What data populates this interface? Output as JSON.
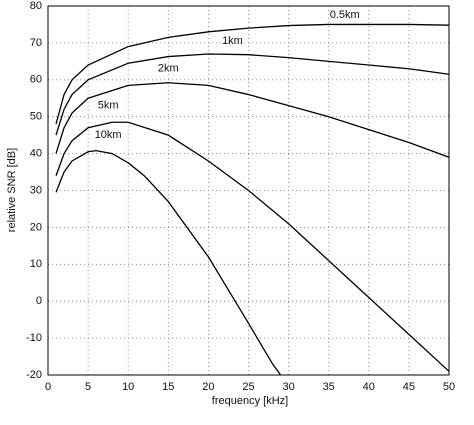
{
  "chart_data": {
    "type": "line",
    "xlabel": "frequency [kHz]",
    "ylabel": "relative SNR [dB]",
    "xlim": [
      0,
      50
    ],
    "ylim": [
      -20,
      80
    ],
    "xticks": [
      0,
      5,
      10,
      15,
      20,
      25,
      30,
      35,
      40,
      45,
      50
    ],
    "yticks": [
      -20,
      -10,
      0,
      10,
      20,
      30,
      40,
      50,
      60,
      70,
      80
    ],
    "grid": true,
    "series": [
      {
        "name": "0.5km",
        "color": "#000000",
        "x": [
          1,
          2,
          3,
          5,
          10,
          15,
          20,
          25,
          30,
          35,
          40,
          45,
          50
        ],
        "values": [
          48,
          56,
          60,
          64,
          69,
          71.5,
          73,
          74,
          74.7,
          75,
          75,
          75,
          74.8
        ]
      },
      {
        "name": "1km",
        "color": "#000000",
        "x": [
          1,
          2,
          3,
          5,
          10,
          15,
          20,
          25,
          30,
          35,
          40,
          45,
          50
        ],
        "values": [
          45,
          52,
          56,
          60,
          64.5,
          66.3,
          67,
          66.8,
          66,
          65,
          64,
          63,
          61.5
        ]
      },
      {
        "name": "2km",
        "color": "#000000",
        "x": [
          1,
          2,
          3,
          5,
          10,
          15,
          20,
          25,
          30,
          35,
          40,
          45,
          50
        ],
        "values": [
          40,
          47,
          51,
          55,
          58.5,
          59.2,
          58.5,
          56,
          53,
          50,
          46.5,
          43,
          39
        ]
      },
      {
        "name": "5km",
        "color": "#000000",
        "x": [
          1,
          2,
          3,
          5,
          8,
          10,
          15,
          20,
          25,
          30,
          35,
          40,
          45,
          50
        ],
        "values": [
          34,
          40,
          43.5,
          47,
          48.5,
          48.5,
          45,
          38,
          30,
          21,
          11,
          1,
          -9,
          -19
        ]
      },
      {
        "name": "10km",
        "color": "#000000",
        "x": [
          1,
          2,
          3,
          5,
          6,
          8,
          10,
          12,
          15,
          20,
          25,
          28,
          29
        ],
        "values": [
          29.5,
          35,
          38,
          40.5,
          40.8,
          40,
          37.5,
          34,
          27,
          12,
          -6,
          -17,
          -20
        ]
      }
    ]
  }
}
